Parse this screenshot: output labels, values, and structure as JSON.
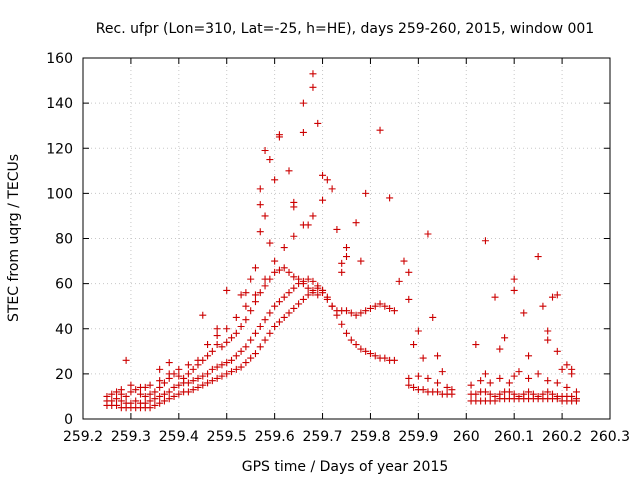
{
  "chart_data": {
    "type": "scatter",
    "title": "Rec. ufpr (Lon=310, Lat=-25, h=HE), days 259-260, 2015, window 001",
    "xlabel": "GPS time / Days of year 2015",
    "ylabel": "STEC from uqrg / TECUs",
    "xlim": [
      259.2,
      260.3
    ],
    "ylim": [
      0,
      160
    ],
    "xticks": [
      "259.2",
      "259.3",
      "259.4",
      "259.5",
      "259.6",
      "259.7",
      "259.8",
      "259.9",
      "260",
      "260.1",
      "260.2",
      "260.3"
    ],
    "yticks": [
      "0",
      "20",
      "40",
      "60",
      "80",
      "100",
      "120",
      "140",
      "160"
    ],
    "grid": true,
    "marker": "plus",
    "color": "#cc0000",
    "points": [
      [
        259.25,
        6
      ],
      [
        259.26,
        6
      ],
      [
        259.27,
        6
      ],
      [
        259.28,
        5
      ],
      [
        259.29,
        5
      ],
      [
        259.3,
        5
      ],
      [
        259.31,
        5
      ],
      [
        259.32,
        5
      ],
      [
        259.33,
        5
      ],
      [
        259.34,
        5
      ],
      [
        259.35,
        6
      ],
      [
        259.36,
        7
      ],
      [
        259.37,
        8
      ],
      [
        259.38,
        9
      ],
      [
        259.39,
        10
      ],
      [
        259.4,
        11
      ],
      [
        259.41,
        12
      ],
      [
        259.42,
        12
      ],
      [
        259.43,
        13
      ],
      [
        259.44,
        14
      ],
      [
        259.45,
        15
      ],
      [
        259.46,
        16
      ],
      [
        259.47,
        17
      ],
      [
        259.48,
        18
      ],
      [
        259.49,
        19
      ],
      [
        259.5,
        20
      ],
      [
        259.51,
        21
      ],
      [
        259.52,
        22
      ],
      [
        259.53,
        23
      ],
      [
        259.54,
        25
      ],
      [
        259.55,
        27
      ],
      [
        259.56,
        29
      ],
      [
        259.57,
        32
      ],
      [
        259.58,
        35
      ],
      [
        259.59,
        38
      ],
      [
        259.6,
        41
      ],
      [
        259.61,
        43
      ],
      [
        259.62,
        45
      ],
      [
        259.63,
        47
      ],
      [
        259.64,
        49
      ],
      [
        259.65,
        51
      ],
      [
        259.66,
        53
      ],
      [
        259.67,
        55
      ],
      [
        259.68,
        57
      ],
      [
        259.69,
        58
      ],
      [
        259.7,
        57
      ],
      [
        259.71,
        54
      ],
      [
        259.72,
        50
      ],
      [
        259.73,
        46
      ],
      [
        259.74,
        42
      ],
      [
        259.75,
        38
      ],
      [
        259.76,
        35
      ],
      [
        259.77,
        33
      ],
      [
        259.78,
        31
      ],
      [
        259.79,
        30
      ],
      [
        259.8,
        29
      ],
      [
        259.81,
        28
      ],
      [
        259.82,
        27
      ],
      [
        259.83,
        27
      ],
      [
        259.84,
        26
      ],
      [
        259.85,
        26
      ],
      [
        259.25,
        8
      ],
      [
        259.26,
        8
      ],
      [
        259.27,
        9
      ],
      [
        259.28,
        8
      ],
      [
        259.29,
        7
      ],
      [
        259.3,
        7
      ],
      [
        259.31,
        8
      ],
      [
        259.32,
        7
      ],
      [
        259.33,
        7
      ],
      [
        259.34,
        8
      ],
      [
        259.35,
        9
      ],
      [
        259.36,
        10
      ],
      [
        259.37,
        11
      ],
      [
        259.38,
        12
      ],
      [
        259.39,
        14
      ],
      [
        259.4,
        15
      ],
      [
        259.41,
        16
      ],
      [
        259.42,
        16
      ],
      [
        259.43,
        17
      ],
      [
        259.44,
        18
      ],
      [
        259.45,
        19
      ],
      [
        259.46,
        20
      ],
      [
        259.47,
        22
      ],
      [
        259.48,
        23
      ],
      [
        259.49,
        24
      ],
      [
        259.5,
        25
      ],
      [
        259.51,
        26
      ],
      [
        259.52,
        28
      ],
      [
        259.53,
        30
      ],
      [
        259.54,
        32
      ],
      [
        259.55,
        35
      ],
      [
        259.56,
        38
      ],
      [
        259.57,
        41
      ],
      [
        259.58,
        44
      ],
      [
        259.59,
        47
      ],
      [
        259.6,
        50
      ],
      [
        259.61,
        52
      ],
      [
        259.62,
        54
      ],
      [
        259.63,
        56
      ],
      [
        259.64,
        58
      ],
      [
        259.65,
        60
      ],
      [
        259.66,
        61
      ],
      [
        259.67,
        62
      ],
      [
        259.68,
        61
      ],
      [
        259.69,
        59
      ],
      [
        259.7,
        56
      ],
      [
        259.71,
        53
      ],
      [
        259.72,
        50
      ],
      [
        259.73,
        48
      ],
      [
        259.74,
        48
      ],
      [
        259.75,
        48
      ],
      [
        259.76,
        47
      ],
      [
        259.77,
        46
      ],
      [
        259.78,
        47
      ],
      [
        259.79,
        48
      ],
      [
        259.8,
        49
      ],
      [
        259.81,
        50
      ],
      [
        259.82,
        51
      ],
      [
        259.83,
        50
      ],
      [
        259.84,
        49
      ],
      [
        259.85,
        48
      ],
      [
        259.25,
        10
      ],
      [
        259.26,
        11
      ],
      [
        259.27,
        12
      ],
      [
        259.28,
        11
      ],
      [
        259.29,
        10
      ],
      [
        259.3,
        12
      ],
      [
        259.31,
        13
      ],
      [
        259.32,
        11
      ],
      [
        259.33,
        10
      ],
      [
        259.34,
        11
      ],
      [
        259.35,
        12
      ],
      [
        259.36,
        14
      ],
      [
        259.37,
        16
      ],
      [
        259.38,
        18
      ],
      [
        259.39,
        20
      ],
      [
        259.4,
        19
      ],
      [
        259.41,
        18
      ],
      [
        259.42,
        20
      ],
      [
        259.43,
        22
      ],
      [
        259.44,
        24
      ],
      [
        259.45,
        26
      ],
      [
        259.46,
        28
      ],
      [
        259.47,
        30
      ],
      [
        259.48,
        33
      ],
      [
        259.49,
        32
      ],
      [
        259.5,
        34
      ],
      [
        259.51,
        36
      ],
      [
        259.52,
        38
      ],
      [
        259.53,
        41
      ],
      [
        259.54,
        44
      ],
      [
        259.55,
        48
      ],
      [
        259.56,
        52
      ],
      [
        259.57,
        56
      ],
      [
        259.58,
        59
      ],
      [
        259.59,
        62
      ],
      [
        259.6,
        65
      ],
      [
        259.61,
        66
      ],
      [
        259.62,
        67
      ],
      [
        259.63,
        65
      ],
      [
        259.64,
        63
      ],
      [
        259.65,
        62
      ],
      [
        259.66,
        60
      ],
      [
        259.67,
        58
      ],
      [
        259.68,
        56
      ],
      [
        259.69,
        55
      ],
      [
        259.7,
        57
      ],
      [
        259.28,
        13
      ],
      [
        259.3,
        15
      ],
      [
        259.32,
        14
      ],
      [
        259.34,
        15
      ],
      [
        259.36,
        17
      ],
      [
        259.38,
        20
      ],
      [
        259.4,
        22
      ],
      [
        259.42,
        24
      ],
      [
        259.44,
        26
      ],
      [
        259.46,
        33
      ],
      [
        259.48,
        37
      ],
      [
        259.5,
        40
      ],
      [
        259.52,
        45
      ],
      [
        259.54,
        50
      ],
      [
        259.56,
        55
      ],
      [
        259.58,
        62
      ],
      [
        259.6,
        70
      ],
      [
        259.62,
        76
      ],
      [
        259.64,
        81
      ],
      [
        259.66,
        86
      ],
      [
        259.68,
        90
      ],
      [
        259.7,
        97
      ],
      [
        259.72,
        102
      ],
      [
        259.29,
        26
      ],
      [
        259.33,
        14
      ],
      [
        259.36,
        22
      ],
      [
        259.38,
        25
      ],
      [
        259.45,
        46
      ],
      [
        259.48,
        40
      ],
      [
        259.5,
        57
      ],
      [
        259.53,
        55
      ],
      [
        259.54,
        56
      ],
      [
        259.55,
        62
      ],
      [
        259.56,
        67
      ],
      [
        259.57,
        83
      ],
      [
        259.57,
        95
      ],
      [
        259.57,
        102
      ],
      [
        259.58,
        90
      ],
      [
        259.58,
        119
      ],
      [
        259.59,
        78
      ],
      [
        259.59,
        115
      ],
      [
        259.6,
        106
      ],
      [
        259.61,
        125
      ],
      [
        259.61,
        126
      ],
      [
        259.63,
        110
      ],
      [
        259.64,
        96
      ],
      [
        259.64,
        94
      ],
      [
        259.66,
        127
      ],
      [
        259.66,
        140
      ],
      [
        259.67,
        86
      ],
      [
        259.68,
        147
      ],
      [
        259.68,
        153
      ],
      [
        259.69,
        131
      ],
      [
        259.7,
        108
      ],
      [
        259.71,
        106
      ],
      [
        259.73,
        84
      ],
      [
        259.74,
        65
      ],
      [
        259.74,
        69
      ],
      [
        259.75,
        72
      ],
      [
        259.75,
        76
      ],
      [
        259.77,
        87
      ],
      [
        259.78,
        70
      ],
      [
        259.79,
        100
      ],
      [
        259.82,
        128
      ],
      [
        259.84,
        98
      ],
      [
        259.86,
        61
      ],
      [
        259.87,
        70
      ],
      [
        259.88,
        65
      ],
      [
        259.88,
        53
      ],
      [
        259.89,
        33
      ],
      [
        259.9,
        39
      ],
      [
        259.91,
        27
      ],
      [
        259.92,
        82
      ],
      [
        259.93,
        45
      ],
      [
        259.94,
        28
      ],
      [
        259.95,
        21
      ],
      [
        259.88,
        15
      ],
      [
        259.89,
        14
      ],
      [
        259.9,
        13
      ],
      [
        259.91,
        13
      ],
      [
        259.92,
        12
      ],
      [
        259.93,
        12
      ],
      [
        259.94,
        12
      ],
      [
        259.95,
        11
      ],
      [
        259.96,
        11
      ],
      [
        259.97,
        11
      ],
      [
        259.88,
        18
      ],
      [
        259.9,
        19
      ],
      [
        259.92,
        18
      ],
      [
        259.94,
        16
      ],
      [
        259.96,
        14
      ],
      [
        259.97,
        13
      ],
      [
        260.01,
        8
      ],
      [
        260.02,
        8
      ],
      [
        260.03,
        8
      ],
      [
        260.04,
        8
      ],
      [
        260.05,
        8
      ],
      [
        260.06,
        8
      ],
      [
        260.07,
        9
      ],
      [
        260.08,
        9
      ],
      [
        260.09,
        9
      ],
      [
        260.1,
        9
      ],
      [
        260.11,
        9
      ],
      [
        260.12,
        9
      ],
      [
        260.13,
        9
      ],
      [
        260.14,
        9
      ],
      [
        260.15,
        9
      ],
      [
        260.16,
        9
      ],
      [
        260.17,
        9
      ],
      [
        260.18,
        9
      ],
      [
        260.19,
        9
      ],
      [
        260.2,
        8
      ],
      [
        260.21,
        8
      ],
      [
        260.22,
        8
      ],
      [
        260.23,
        8
      ],
      [
        260.01,
        11
      ],
      [
        260.02,
        11
      ],
      [
        260.03,
        12
      ],
      [
        260.04,
        12
      ],
      [
        260.05,
        11
      ],
      [
        260.06,
        10
      ],
      [
        260.07,
        11
      ],
      [
        260.08,
        12
      ],
      [
        260.09,
        12
      ],
      [
        260.1,
        11
      ],
      [
        260.11,
        10
      ],
      [
        260.12,
        11
      ],
      [
        260.13,
        12
      ],
      [
        260.14,
        11
      ],
      [
        260.15,
        10
      ],
      [
        260.16,
        11
      ],
      [
        260.17,
        12
      ],
      [
        260.18,
        11
      ],
      [
        260.19,
        10
      ],
      [
        260.2,
        10
      ],
      [
        260.21,
        10
      ],
      [
        260.22,
        10
      ],
      [
        260.23,
        9
      ],
      [
        260.01,
        15
      ],
      [
        260.03,
        17
      ],
      [
        260.04,
        20
      ],
      [
        260.05,
        16
      ],
      [
        260.07,
        18
      ],
      [
        260.09,
        16
      ],
      [
        260.1,
        19
      ],
      [
        260.11,
        21
      ],
      [
        260.13,
        18
      ],
      [
        260.15,
        20
      ],
      [
        260.17,
        17
      ],
      [
        260.19,
        16
      ],
      [
        260.21,
        14
      ],
      [
        260.23,
        12
      ],
      [
        260.02,
        33
      ],
      [
        260.04,
        79
      ],
      [
        260.06,
        54
      ],
      [
        260.07,
        31
      ],
      [
        260.08,
        36
      ],
      [
        260.1,
        62
      ],
      [
        260.1,
        57
      ],
      [
        260.12,
        47
      ],
      [
        260.13,
        28
      ],
      [
        260.15,
        72
      ],
      [
        260.16,
        50
      ],
      [
        260.17,
        39
      ],
      [
        260.17,
        35
      ],
      [
        260.18,
        54
      ],
      [
        260.19,
        55
      ],
      [
        260.19,
        30
      ],
      [
        260.2,
        22
      ],
      [
        260.21,
        24
      ],
      [
        260.22,
        22
      ],
      [
        260.22,
        20
      ]
    ]
  }
}
